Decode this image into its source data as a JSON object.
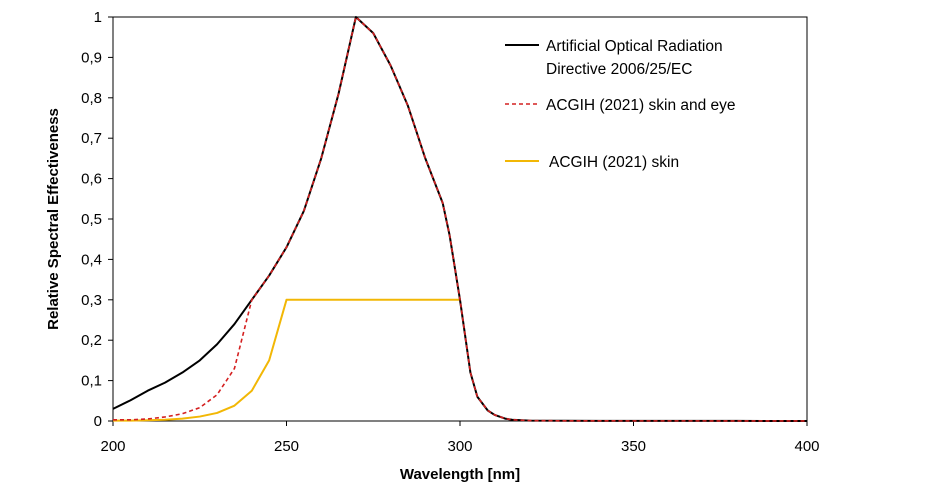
{
  "chart_data": {
    "type": "line",
    "xlabel": "Wavelength [nm]",
    "ylabel": "Relative Spectral Effectiveness",
    "xlim": [
      200,
      400
    ],
    "ylim": [
      0,
      1
    ],
    "xticks": [
      "200",
      "250",
      "300",
      "350",
      "400"
    ],
    "yticks": [
      "0",
      "0,1",
      "0,2",
      "0,3",
      "0,4",
      "0,5",
      "0,6",
      "0,7",
      "0,8",
      "0,9",
      "1"
    ],
    "grid": false,
    "legend_position": "top-right",
    "series": [
      {
        "name_lines": [
          "Artificial Optical Radiation",
          "Directive 2006/25/EC"
        ],
        "color": "#000000",
        "dash": "solid",
        "x": [
          200,
          205,
          210,
          215,
          220,
          225,
          230,
          235,
          240,
          245,
          250,
          255,
          260,
          265,
          270,
          275,
          280,
          285,
          290,
          295,
          297,
          300,
          303,
          305,
          308,
          310,
          313,
          315,
          320,
          330,
          340,
          350,
          360,
          370,
          380,
          390,
          400
        ],
        "y": [
          0.03,
          0.051,
          0.075,
          0.095,
          0.12,
          0.15,
          0.19,
          0.24,
          0.3,
          0.36,
          0.43,
          0.52,
          0.65,
          0.81,
          1.0,
          0.96,
          0.88,
          0.78,
          0.65,
          0.54,
          0.46,
          0.3,
          0.12,
          0.06,
          0.026,
          0.015,
          0.006,
          0.003,
          0.001,
          0.0005,
          0.0004,
          0.0003,
          0.0003,
          0.0003,
          0.0002,
          0.0001,
          0.0001
        ]
      },
      {
        "name": "ACGIH (2021) skin and eye",
        "color": "#d42020",
        "dash": "dashed",
        "x": [
          200,
          205,
          210,
          215,
          220,
          225,
          230,
          235,
          240,
          245,
          250,
          255,
          260,
          265,
          270,
          275,
          280,
          285,
          290,
          295,
          297,
          300,
          303,
          305,
          308,
          310,
          313,
          315,
          320,
          330,
          340,
          350,
          360,
          370,
          380,
          390,
          400
        ],
        "y": [
          0.003,
          0.003,
          0.005,
          0.01,
          0.018,
          0.033,
          0.065,
          0.13,
          0.3,
          0.36,
          0.43,
          0.52,
          0.65,
          0.81,
          1.0,
          0.96,
          0.88,
          0.78,
          0.65,
          0.54,
          0.46,
          0.3,
          0.12,
          0.06,
          0.026,
          0.015,
          0.006,
          0.003,
          0.001,
          0.0005,
          0.0004,
          0.0003,
          0.0003,
          0.0003,
          0.0002,
          0.0001,
          0.0001
        ]
      },
      {
        "name": "ACGIH (2021) skin",
        "color": "#f2b705",
        "dash": "solid",
        "x": [
          200,
          205,
          210,
          215,
          220,
          225,
          230,
          235,
          240,
          245,
          250,
          300
        ],
        "y": [
          0.001,
          0.001,
          0.002,
          0.003,
          0.006,
          0.011,
          0.02,
          0.038,
          0.075,
          0.15,
          0.3,
          0.3
        ]
      }
    ]
  }
}
